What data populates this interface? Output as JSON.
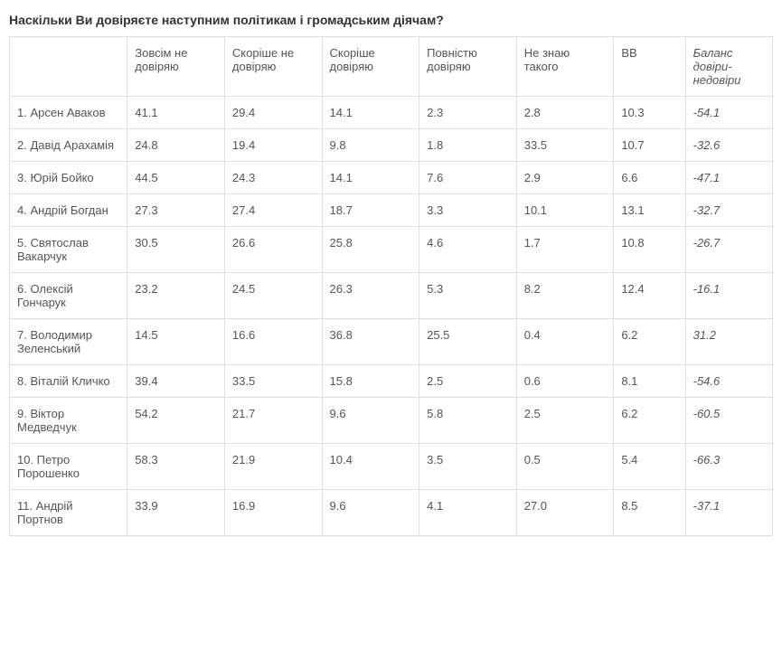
{
  "title": "Наскільки Ви довіряєте наступним політикам і громадським діячам?",
  "table": {
    "type": "table",
    "columns": [
      "",
      "Зовсім не довіряю",
      "Скоріше не довіряю",
      "Скоріше довіряю",
      "Повністю довіряю",
      "Не знаю такого",
      "ВВ",
      "Баланс довіри-недовіри"
    ],
    "rows": [
      {
        "name": "1. Арсен Аваков",
        "v": [
          "41.1",
          "29.4",
          "14.1",
          "2.3",
          "2.8",
          "10.3",
          "-54.1"
        ]
      },
      {
        "name": "2. Давід Арахамія",
        "v": [
          "24.8",
          "19.4",
          "9.8",
          "1.8",
          "33.5",
          "10.7",
          "-32.6"
        ]
      },
      {
        "name": "3. Юрій Бойко",
        "v": [
          "44.5",
          "24.3",
          "14.1",
          "7.6",
          "2.9",
          "6.6",
          "-47.1"
        ]
      },
      {
        "name": "4. Андрій Богдан",
        "v": [
          "27.3",
          "27.4",
          "18.7",
          "3.3",
          "10.1",
          "13.1",
          "-32.7"
        ]
      },
      {
        "name": "5. Святослав Вакарчук",
        "v": [
          "30.5",
          "26.6",
          "25.8",
          "4.6",
          "1.7",
          "10.8",
          "-26.7"
        ]
      },
      {
        "name": "6. Олексій Гончарук",
        "v": [
          "23.2",
          "24.5",
          "26.3",
          "5.3",
          "8.2",
          "12.4",
          "-16.1"
        ]
      },
      {
        "name": "7. Володимир Зеленський",
        "v": [
          "14.5",
          "16.6",
          "36.8",
          "25.5",
          "0.4",
          "6.2",
          "31.2"
        ]
      },
      {
        "name": "8. Віталій Кличко",
        "v": [
          "39.4",
          "33.5",
          "15.8",
          "2.5",
          "0.6",
          "8.1",
          "-54.6"
        ]
      },
      {
        "name": "9. Віктор Медведчук",
        "v": [
          "54.2",
          "21.7",
          "9.6",
          "5.8",
          "2.5",
          "6.2",
          "-60.5"
        ]
      },
      {
        "name": "10. Петро Порошенко",
        "v": [
          "58.3",
          "21.9",
          "10.4",
          "3.5",
          "0.5",
          "5.4",
          "-66.3"
        ]
      },
      {
        "name": "11. Андрій Портнов",
        "v": [
          "33.9",
          "16.9",
          "9.6",
          "4.1",
          "27.0",
          "8.5",
          "-37.1"
        ]
      }
    ],
    "border_color": "#e0e0e0",
    "background_color": "#ffffff",
    "text_color": "#555555",
    "title_color": "#333333",
    "font_size": 13,
    "title_fontsize": 14
  }
}
